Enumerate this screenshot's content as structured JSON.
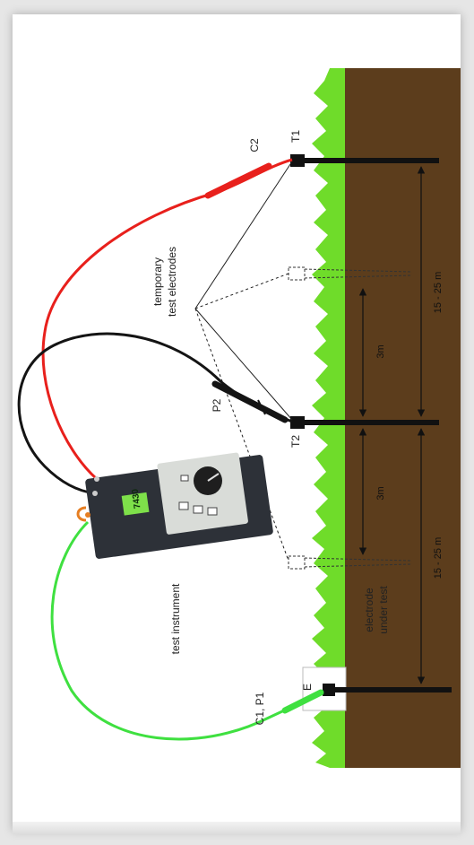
{
  "labels": {
    "t1": "T1",
    "t2": "T2",
    "c2": "C2",
    "p2": "P2",
    "e": "E",
    "c1p1": "C1, P1",
    "temporary_test_electrodes_line1": "temporary",
    "temporary_test_electrodes_line2": "test electrodes",
    "test_instrument": "test instrument",
    "electrode_under_test_line1": "electrode",
    "electrode_under_test_line2": "under test",
    "dim_3m_upper": "3m",
    "dim_3m_lower": "3m",
    "dim_15_25_upper": "15 - 25 m",
    "dim_15_25_lower": "15 - 25 m"
  },
  "instrument": {
    "display_value": "7430"
  },
  "colors": {
    "soil": "#5c3d1c",
    "grass": "#6fdc2a",
    "red_lead": "#e8201c",
    "black_lead": "#141414",
    "green_lead": "#3fe040",
    "lcd": "#7ee04a",
    "instrument_body": "#2d3138",
    "instrument_panel": "#d9dcd8"
  }
}
